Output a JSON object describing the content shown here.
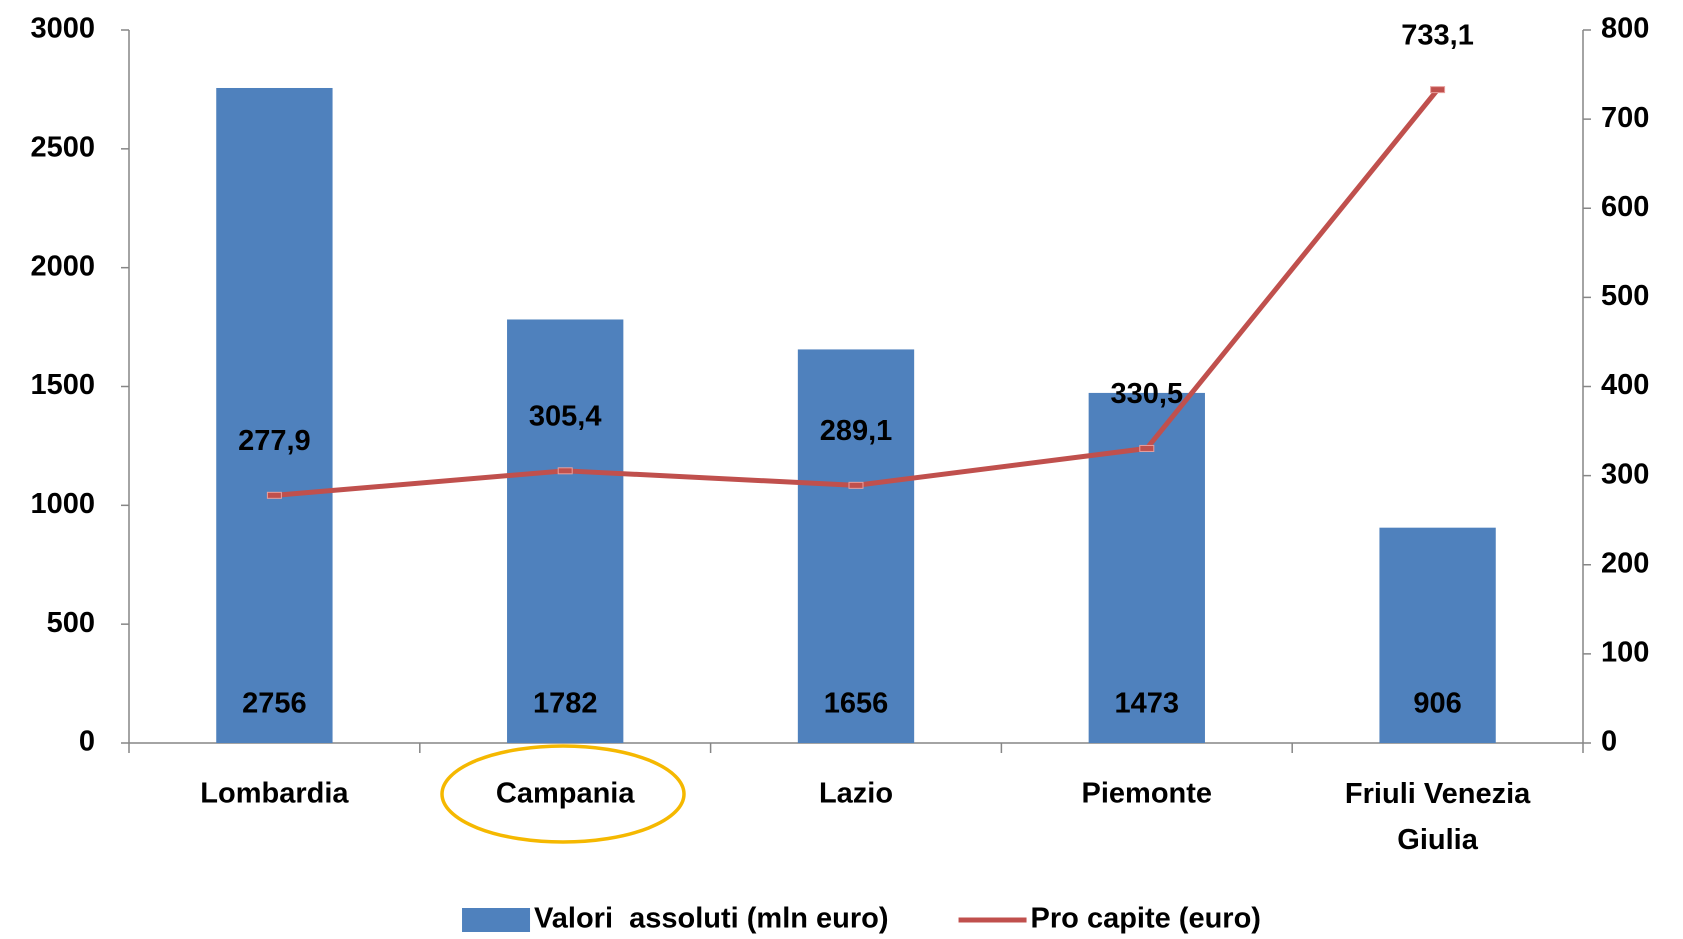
{
  "chart_data": {
    "type": "bar-line",
    "categories": [
      "Lombardia",
      "Campania",
      "Lazio",
      "Piemonte",
      "Friuli Venezia Giulia"
    ],
    "series": [
      {
        "name": "Valori  assoluti (mln euro)",
        "type": "bar",
        "color": "#4f81bd",
        "values": [
          2756,
          1782,
          1656,
          1473,
          906
        ]
      },
      {
        "name": "Pro capite (euro)",
        "type": "line",
        "axis": "y2",
        "color": "#c0504d",
        "values": [
          277.9,
          305.4,
          289.1,
          330.5,
          733.1
        ],
        "value_labels": [
          "277,9",
          "305,4",
          "289,1",
          "330,5",
          "733,1"
        ]
      }
    ],
    "ylim": [
      0,
      3000
    ],
    "yticks": [
      0,
      500,
      1000,
      1500,
      2000,
      2500,
      3000
    ],
    "y2lim": [
      0,
      800
    ],
    "y2ticks": [
      0,
      100,
      200,
      300,
      400,
      500,
      600,
      700,
      800
    ],
    "grid": false,
    "legend": "bottom"
  }
}
